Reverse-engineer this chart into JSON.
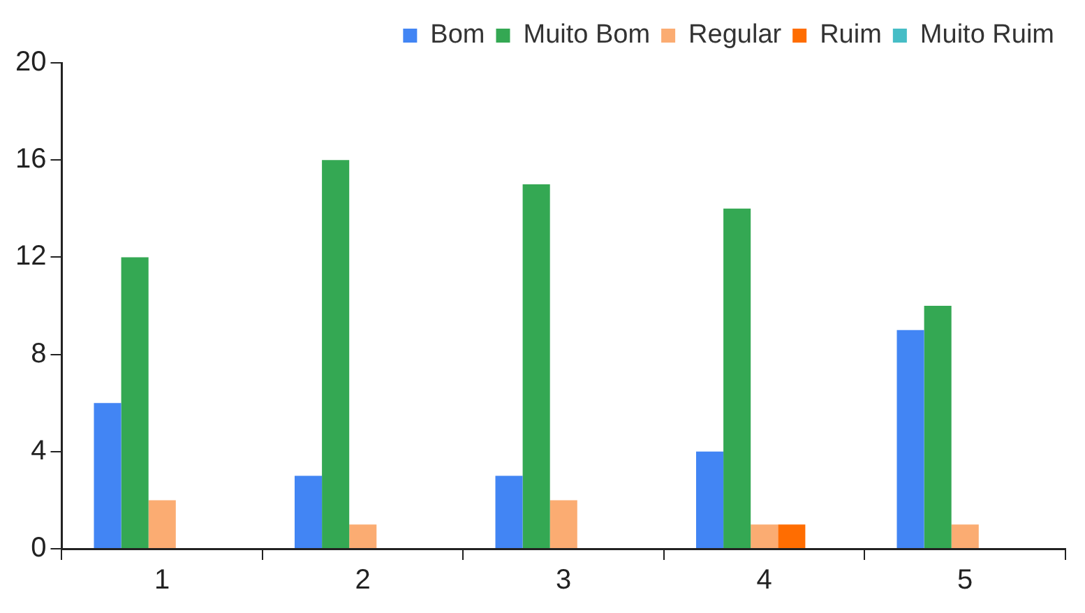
{
  "chart_data": {
    "type": "bar",
    "categories": [
      "1",
      "2",
      "3",
      "4",
      "5"
    ],
    "series": [
      {
        "name": "Bom",
        "color": "#4285f4",
        "values": [
          6,
          3,
          3,
          4,
          9
        ]
      },
      {
        "name": "Muito Bom",
        "color": "#34a853",
        "values": [
          12,
          16,
          15,
          14,
          10
        ]
      },
      {
        "name": "Regular",
        "color": "#fbac72",
        "values": [
          2,
          1,
          2,
          1,
          1
        ]
      },
      {
        "name": "Ruim",
        "color": "#ff6d01",
        "values": [
          0,
          0,
          0,
          1,
          0
        ]
      },
      {
        "name": "Muito Ruim",
        "color": "#46bdc6",
        "values": [
          0,
          0,
          0,
          0,
          0
        ]
      }
    ],
    "ylim": [
      0,
      20
    ],
    "yticks": [
      0,
      4,
      8,
      12,
      16,
      20
    ],
    "grid": false,
    "legend": "top right"
  }
}
